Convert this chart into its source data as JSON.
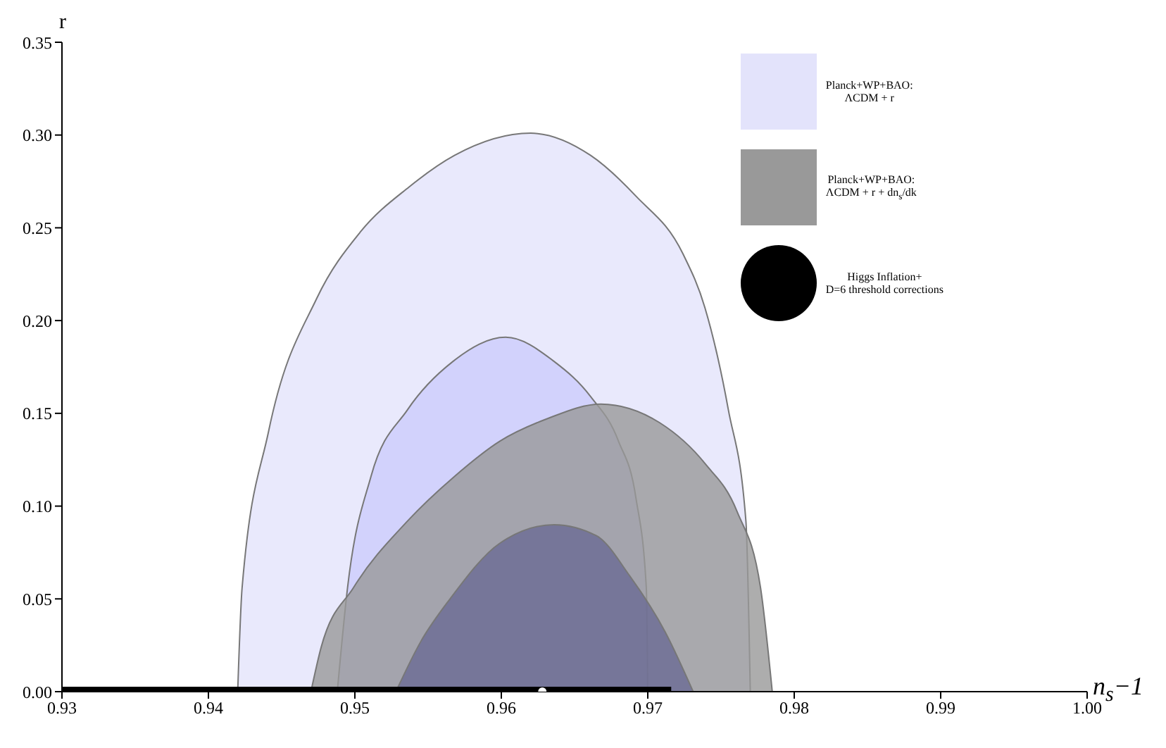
{
  "chart_data": {
    "type": "area",
    "xlabel": "n$_{s}$−1",
    "ylabel": "r",
    "xlim": [
      0.93,
      1.0
    ],
    "ylim": [
      0,
      0.35
    ],
    "xticks": [
      0.93,
      {
        "value": 0.94,
        "label": "0.94"
      },
      {
        "value": 0.95,
        "label": "0.95"
      },
      {
        "value": 0.96,
        "label": "0.96"
      },
      {
        "value": 0.97,
        "label": "0.97"
      },
      {
        "value": 0.98,
        "label": "0.98"
      },
      {
        "value": 0.99,
        "label": "0.99"
      },
      {
        "value": 1.0,
        "label": "1.00"
      }
    ],
    "yticks": [
      {
        "value": 0,
        "label": "0.00"
      },
      0.05,
      {
        "value": 0.1,
        "label": "0.10"
      },
      0.15,
      {
        "value": 0.2,
        "label": "0.20"
      },
      0.25,
      {
        "value": 0.3,
        "label": "0.30"
      },
      0.35
    ],
    "legend": "top right",
    "series": [
      {
        "name": "Planck+WP+BAO:\nΛCDM  + r",
        "color": "#e3e3fb",
        "x": [
          0.942,
          0.9423,
          0.9441,
          0.9474,
          0.9504,
          0.9537,
          0.9568,
          0.962,
          0.9661,
          0.9692,
          0.9724,
          0.9739,
          0.9755,
          0.9767,
          0.977
        ],
        "values": [
          0,
          0.056,
          0.14,
          0.212,
          0.248,
          0.272,
          0.289,
          0.301,
          0.289,
          0.267,
          0.236,
          0.207,
          0.152,
          0.092,
          0
        ]
      },
      {
        "color": "#ccccfb",
        "x": [
          0.9488,
          0.9495,
          0.9511,
          0.9536,
          0.9567,
          0.9603,
          0.9636,
          0.9661,
          0.968,
          0.9692,
          0.9699,
          0.97
        ],
        "values": [
          0,
          0.056,
          0.116,
          0.152,
          0.178,
          0.191,
          0.178,
          0.159,
          0.135,
          0.104,
          0.056,
          0
        ]
      },
      {
        "name": "Planck+WP+BAO:\nΛCDM  + r + dn$_{s}$/dk",
        "color": "#999999",
        "x": [
          0.947,
          0.9477,
          0.9499,
          0.9536,
          0.9568,
          0.9599,
          0.9631,
          0.9668,
          0.9708,
          0.9739,
          0.9761,
          0.9777,
          0.9785
        ],
        "values": [
          0,
          0.024,
          0.056,
          0.092,
          0.116,
          0.135,
          0.147,
          0.155,
          0.145,
          0.123,
          0.097,
          0.056,
          0
        ]
      },
      {
        "color": "#6a6a94",
        "x": [
          0.9528,
          0.9545,
          0.9565,
          0.9599,
          0.9636,
          0.9665,
          0.9688,
          0.9712,
          0.9731
        ],
        "values": [
          0,
          0.027,
          0.05,
          0.08,
          0.09,
          0.084,
          0.062,
          0.032,
          0
        ]
      },
      {
        "type": "line",
        "name": "Higgs Inflation+\nD=6 threshold corrections",
        "color": "#000000",
        "x": [
          0.93,
          0.9716
        ],
        "values": [
          0,
          0
        ]
      },
      {
        "type": "scatter",
        "color": "#ffffff",
        "x": [
          0.9628
        ],
        "values": [
          0
        ]
      }
    ]
  }
}
